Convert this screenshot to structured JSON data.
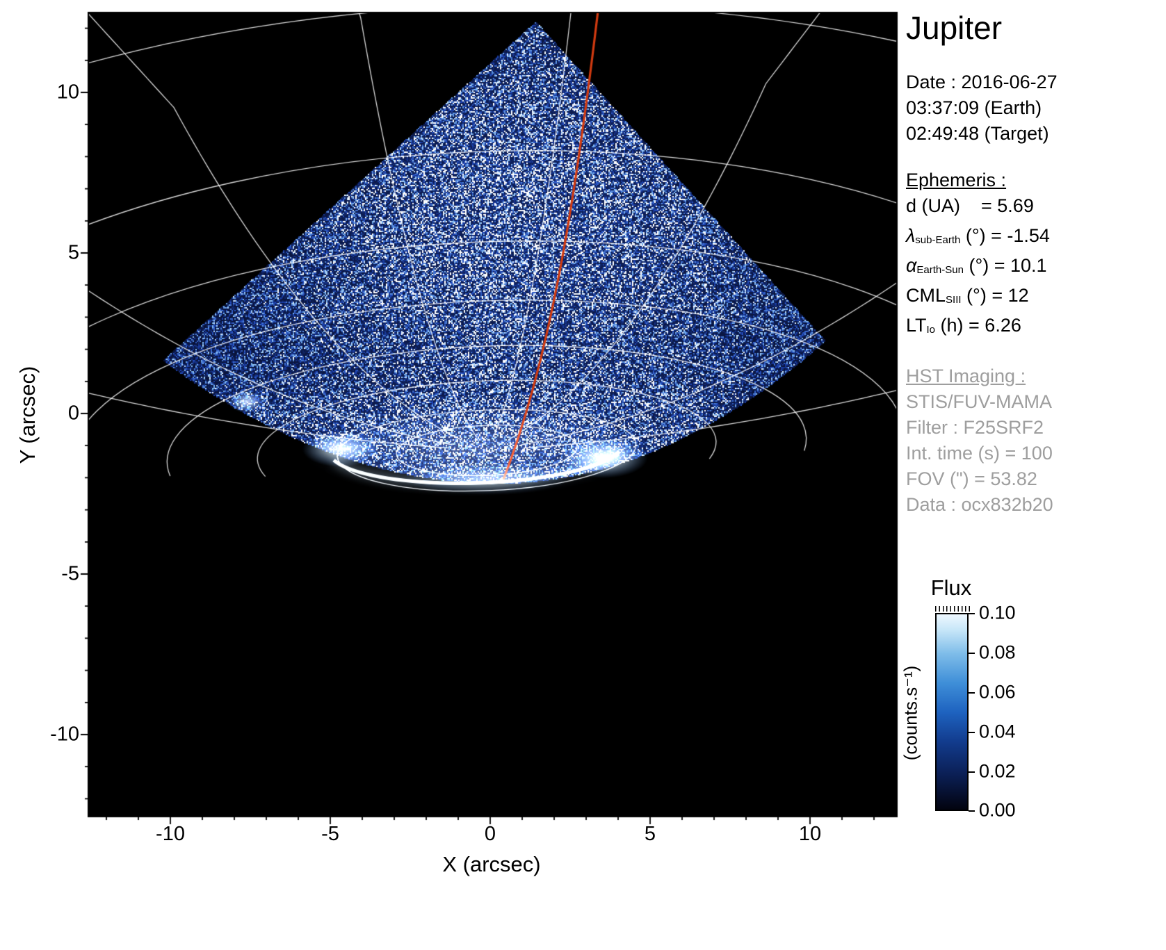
{
  "colors": {
    "background": "#ffffff",
    "plot_bg": "#000000",
    "graticule": "#ffffff",
    "meridian_red": "#d03a10",
    "text": "#000000",
    "muted_text": "#9e9e9e"
  },
  "axes": {
    "x_label": "X (arcsec)",
    "y_label": "Y (arcsec)",
    "x_ticks": [
      "-10",
      "-5",
      "0",
      "5",
      "10"
    ],
    "y_ticks": [
      "10",
      "5",
      "0",
      "-5",
      "-10"
    ]
  },
  "panel": {
    "title": "Jupiter",
    "date_lines": [
      "Date : 2016-06-27",
      "03:37:09 (Earth)",
      "02:49:48 (Target)"
    ],
    "ephemeris": {
      "heading": "Ephemeris :",
      "items": [
        {
          "sym": "d (UA)",
          "sub": "",
          "rest": "    = 5.69"
        },
        {
          "sym": "λ",
          "sub": "sub-Earth",
          "rest": " (°) = -1.54"
        },
        {
          "sym": "α",
          "sub": "Earth-Sun",
          "rest": " (°) = 10.1"
        },
        {
          "sym": "CML",
          "sub": "SIII",
          "rest": " (°) = 12"
        },
        {
          "sym": "LT",
          "sub": "Io",
          "rest": " (h) = 6.26"
        }
      ]
    },
    "hst": {
      "heading": "HST Imaging :",
      "lines": [
        "STIS/FUV-MAMA",
        "Filter : F25SRF2",
        "Int. time (s) = 100",
        "FOV (\") = 53.82",
        "Data : ocx832b20"
      ]
    }
  },
  "colorbar": {
    "title": "Flux",
    "unit": "(counts.s⁻¹)",
    "tick_labels": [
      "0.10",
      "0.08",
      "0.06",
      "0.04",
      "0.02",
      "0.00"
    ]
  },
  "chart_data": {
    "type": "heatmap",
    "title": "Jupiter",
    "xlabel": "X (arcsec)",
    "ylabel": "Y (arcsec)",
    "xlim": [
      -12.6,
      12.7
    ],
    "ylim": [
      -12.5,
      12.4
    ],
    "x_ticks": [
      -10,
      -5,
      0,
      5,
      10
    ],
    "y_ticks": [
      -10,
      -5,
      0,
      5,
      10
    ],
    "grid": false,
    "legend": false,
    "colorbar": {
      "label": "Flux",
      "unit": "counts.s⁻¹",
      "min": 0.0,
      "max": 0.1,
      "ticks": [
        0.0,
        0.02,
        0.04,
        0.06,
        0.08,
        0.1
      ],
      "colormap": "black → dark blue → blue → white"
    },
    "observation": {
      "date": "2016-06-27",
      "earth_time": "03:37:09",
      "target_time": "02:49:48",
      "d_UA": 5.69,
      "lambda_subEarth_deg": -1.54,
      "alpha_EarthSun_deg": 10.1,
      "CML_SIII_deg": 12,
      "LT_Io_h": 6.26,
      "instrument": "STIS/FUV-MAMA",
      "filter": "F25SRF2",
      "int_time_s": 100,
      "FOV_arcsec": 53.82,
      "data_id": "ocx832b20"
    },
    "features": [
      "Diamond-shaped detector footprint filled with speckled blue FUV counts; apex near (1.4, 12.1), left corner near (-10.3, 1.7), right corner near (10.4, 2.3), cut below by the planetary limb near y ≈ -1.5",
      "Bright auroral oval arc along the limb from x ≈ -5.5 to x ≈ 4.2 around y ≈ -1 to -2",
      "Brightest auroral spots near (-4.8, -1.2) and (3.5, -1.4); secondary spot near (-7.6, 0.4)",
      "White planetocentric latitude/longitude graticule (nested ellipses and meridians) converging toward the pole near (0, -1.2)",
      "Red meridian line from (3.4, 12.2) at the top curving down to (0.4, -2) at the pole region"
    ]
  }
}
